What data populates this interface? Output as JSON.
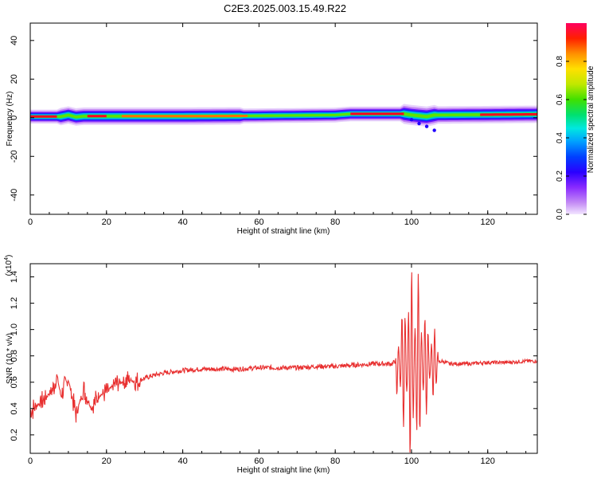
{
  "title": "C2E3.2025.003.15.49.R22",
  "colors": {
    "snr_line": "#e83030",
    "axis": "#000000",
    "colormap": [
      "#d8b3f5",
      "#a050ff",
      "#5a00ff",
      "#0000ff",
      "#0090ff",
      "#00e8e0",
      "#00d070",
      "#40e000",
      "#b0e000",
      "#ffff00",
      "#ffb000",
      "#ff6000",
      "#ff0000",
      "#ff0060"
    ]
  },
  "chart_data": [
    {
      "type": "heatmap",
      "title": "",
      "xlabel": "Height of straight line (km)",
      "ylabel": "Frequency (Hz)",
      "xlim": [
        0,
        133
      ],
      "ylim": [
        -50,
        49
      ],
      "xticks": [
        "0",
        "20",
        "40",
        "60",
        "80",
        "100",
        "120"
      ],
      "yticks": [
        "-40",
        "-20",
        "0",
        "20",
        "40"
      ],
      "colorbar": {
        "label": "Normalized spectral amplitude",
        "range": [
          0,
          1
        ],
        "ticks": [
          "0.0",
          "0.2",
          "0.4",
          "0.6",
          "0.8"
        ]
      },
      "ridge": {
        "x": [
          0,
          8,
          10,
          12,
          14,
          20,
          40,
          60,
          80,
          84,
          98,
          100,
          104,
          106,
          133
        ],
        "y": [
          0.6,
          0.6,
          1.4,
          0.4,
          0.8,
          0.8,
          0.8,
          1.0,
          1.4,
          2.0,
          2.0,
          1.4,
          0.6,
          1.4,
          1.8
        ]
      }
    },
    {
      "type": "line",
      "title": "",
      "xlabel": "Height of straight line (km)",
      "ylabel": "SNR (10 * v/v)",
      "y_multiplier": "(x10^4)",
      "xlim": [
        0,
        133
      ],
      "ylim": [
        0.06,
        1.5
      ],
      "xticks": [
        "0",
        "20",
        "40",
        "60",
        "80",
        "100",
        "120"
      ],
      "yticks": [
        "0.2",
        "0.4",
        "0.6",
        "0.8",
        "1.0",
        "1.2",
        "1.4"
      ],
      "series": [
        {
          "x": [
            0,
            2,
            4,
            6,
            7,
            8,
            10,
            12,
            14,
            16,
            18,
            20,
            22,
            24,
            26,
            28,
            30,
            32,
            35,
            40,
            45,
            50,
            55,
            60,
            65,
            70,
            75,
            80,
            85,
            90,
            95,
            97,
            98,
            99,
            100,
            100.5,
            101,
            102,
            103,
            104,
            105,
            106,
            107,
            108,
            110,
            115,
            120,
            125,
            130,
            133
          ],
          "y": [
            0.38,
            0.43,
            0.48,
            0.55,
            0.65,
            0.5,
            0.62,
            0.35,
            0.55,
            0.4,
            0.5,
            0.52,
            0.58,
            0.6,
            0.62,
            0.6,
            0.63,
            0.65,
            0.67,
            0.69,
            0.7,
            0.7,
            0.7,
            0.71,
            0.71,
            0.71,
            0.72,
            0.72,
            0.73,
            0.74,
            0.74,
            0.8,
            0.4,
            1.0,
            0.1,
            1.5,
            0.2,
            1.1,
            0.2,
            1.05,
            0.3,
            0.9,
            0.75,
            0.76,
            0.74,
            0.74,
            0.75,
            0.75,
            0.76,
            0.76
          ]
        }
      ]
    }
  ]
}
